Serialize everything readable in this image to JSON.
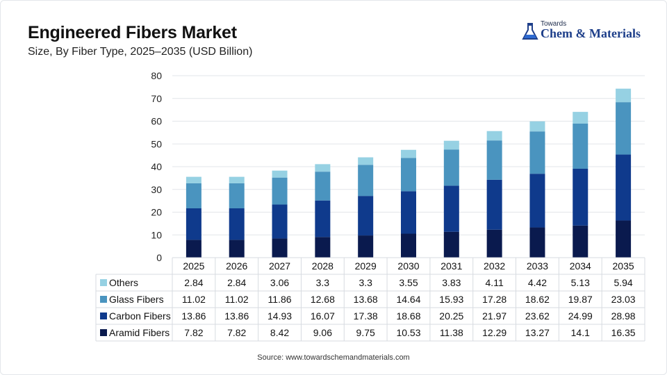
{
  "title": "Engineered Fibers Market",
  "subtitle": "Size, By Fiber Type, 2025–2035 (USD Billion)",
  "logo": {
    "small_text": "Towards",
    "main_text": "Chem & Materials",
    "icon": "flask-icon"
  },
  "source": "Source: www.towardschemandmaterials.com",
  "colors": {
    "Others": "#96d1e3",
    "Glass Fibers": "#4a94bf",
    "Carbon Fibers": "#0f3a8c",
    "Aramid Fibers": "#0a1a4e"
  },
  "chart_data": {
    "type": "bar",
    "stacked": true,
    "categories": [
      "2025",
      "2026",
      "2027",
      "2028",
      "2029",
      "2030",
      "2031",
      "2032",
      "2033",
      "2034",
      "2035"
    ],
    "series": [
      {
        "name": "Aramid Fibers",
        "values": [
          7.82,
          7.82,
          8.42,
          9.06,
          9.75,
          10.53,
          11.38,
          12.29,
          13.27,
          14.1,
          16.35
        ]
      },
      {
        "name": "Carbon Fibers",
        "values": [
          13.86,
          13.86,
          14.93,
          16.07,
          17.38,
          18.68,
          20.25,
          21.97,
          23.62,
          24.99,
          28.98
        ]
      },
      {
        "name": "Glass Fibers",
        "values": [
          11.02,
          11.02,
          11.86,
          12.68,
          13.68,
          14.64,
          15.93,
          17.28,
          18.62,
          19.87,
          23.03
        ]
      },
      {
        "name": "Others",
        "values": [
          2.84,
          2.84,
          3.06,
          3.3,
          3.3,
          3.55,
          3.83,
          4.11,
          4.42,
          5.13,
          5.94
        ]
      }
    ],
    "table_row_order": [
      "Others",
      "Glass Fibers",
      "Carbon Fibers",
      "Aramid Fibers"
    ],
    "ylim": [
      0,
      80
    ],
    "yticks": [
      0,
      10,
      20,
      30,
      40,
      50,
      60,
      70,
      80
    ],
    "grid": true,
    "legend": "data table below chart"
  }
}
